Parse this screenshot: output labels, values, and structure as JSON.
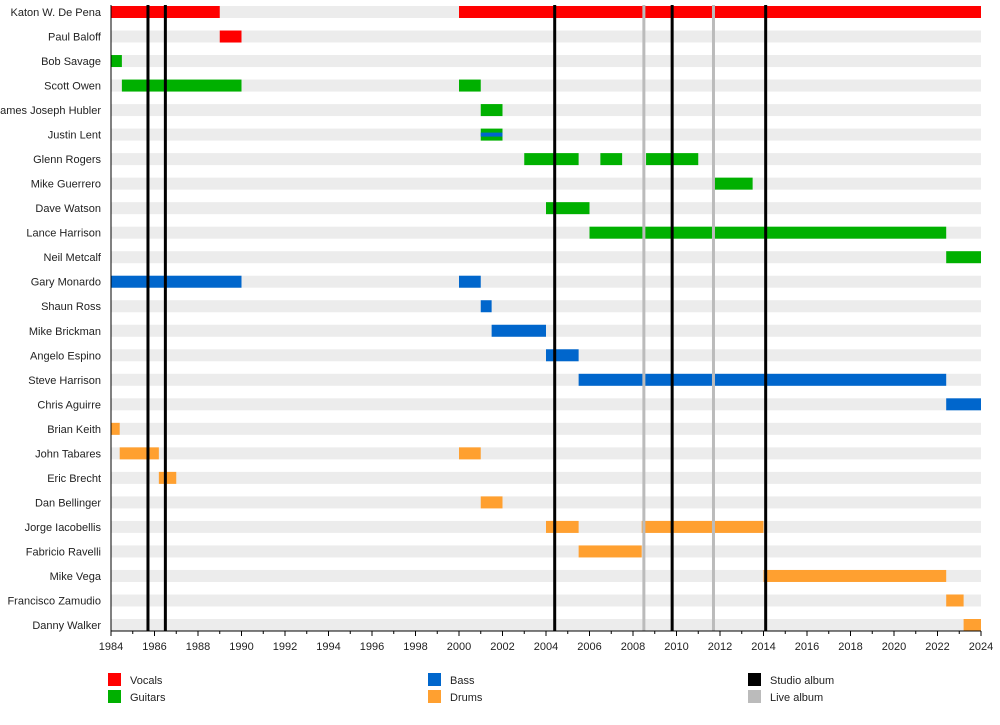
{
  "chart_data": {
    "type": "timeline",
    "xlim": [
      1984,
      2024
    ],
    "x_ticks": [
      "1984",
      "1986",
      "1988",
      "1990",
      "1992",
      "1994",
      "1996",
      "1998",
      "2000",
      "2002",
      "2004",
      "2006",
      "2008",
      "2010",
      "2012",
      "2014",
      "2016",
      "2018",
      "2020",
      "2022",
      "2024"
    ],
    "role_colors": {
      "Vocals": "#ff0000",
      "Guitars": "#00b000",
      "Bass": "#0066cc",
      "Drums": "#ffa030"
    },
    "members": [
      {
        "name": "Katon W. De Pena",
        "spans": [
          {
            "role": "Vocals",
            "start": 1984,
            "end": 1989
          },
          {
            "role": "Vocals",
            "start": 2000,
            "end": 2024
          }
        ]
      },
      {
        "name": "Paul Baloff",
        "spans": [
          {
            "role": "Vocals",
            "start": 1989,
            "end": 1990
          }
        ]
      },
      {
        "name": "Bob Savage",
        "spans": [
          {
            "role": "Guitars",
            "start": 1984,
            "end": 1984.5
          }
        ]
      },
      {
        "name": "Scott Owen",
        "spans": [
          {
            "role": "Guitars",
            "start": 1984.5,
            "end": 1990
          },
          {
            "role": "Guitars",
            "start": 2000,
            "end": 2001
          }
        ]
      },
      {
        "name": "James Joseph Hubler",
        "spans": [
          {
            "role": "Guitars",
            "start": 2001,
            "end": 2002
          }
        ]
      },
      {
        "name": "Justin Lent",
        "spans": [
          {
            "role": "Guitars",
            "start": 2001,
            "end": 2002
          },
          {
            "role": "Bass",
            "start": 2001,
            "end": 2002,
            "stripe": true
          }
        ]
      },
      {
        "name": "Glenn Rogers",
        "spans": [
          {
            "role": "Guitars",
            "start": 2003,
            "end": 2005.5
          },
          {
            "role": "Guitars",
            "start": 2006.5,
            "end": 2007.5
          },
          {
            "role": "Guitars",
            "start": 2008.6,
            "end": 2011
          }
        ]
      },
      {
        "name": "Mike Guerrero",
        "spans": [
          {
            "role": "Guitars",
            "start": 2011.7,
            "end": 2013.5
          }
        ]
      },
      {
        "name": "Dave Watson",
        "spans": [
          {
            "role": "Guitars",
            "start": 2004,
            "end": 2006
          }
        ]
      },
      {
        "name": "Lance Harrison",
        "spans": [
          {
            "role": "Guitars",
            "start": 2006,
            "end": 2022.4
          }
        ]
      },
      {
        "name": "Neil Metcalf",
        "spans": [
          {
            "role": "Guitars",
            "start": 2022.4,
            "end": 2024
          }
        ]
      },
      {
        "name": "Gary Monardo",
        "spans": [
          {
            "role": "Bass",
            "start": 1984,
            "end": 1990
          },
          {
            "role": "Bass",
            "start": 2000,
            "end": 2001
          }
        ]
      },
      {
        "name": "Shaun Ross",
        "spans": [
          {
            "role": "Bass",
            "start": 2001,
            "end": 2001.5
          }
        ]
      },
      {
        "name": "Mike Brickman",
        "spans": [
          {
            "role": "Bass",
            "start": 2001.5,
            "end": 2004
          }
        ]
      },
      {
        "name": "Angelo Espino",
        "spans": [
          {
            "role": "Bass",
            "start": 2004,
            "end": 2005.5
          }
        ]
      },
      {
        "name": "Steve Harrison",
        "spans": [
          {
            "role": "Bass",
            "start": 2005.5,
            "end": 2022.4
          }
        ]
      },
      {
        "name": "Chris Aguirre",
        "spans": [
          {
            "role": "Bass",
            "start": 2022.4,
            "end": 2024
          }
        ]
      },
      {
        "name": "Brian Keith",
        "spans": [
          {
            "role": "Drums",
            "start": 1984,
            "end": 1984.4
          }
        ]
      },
      {
        "name": "John Tabares",
        "spans": [
          {
            "role": "Drums",
            "start": 1984.4,
            "end": 1986.2
          },
          {
            "role": "Drums",
            "start": 2000,
            "end": 2001
          }
        ]
      },
      {
        "name": "Eric Brecht",
        "spans": [
          {
            "role": "Drums",
            "start": 1986.2,
            "end": 1987
          }
        ]
      },
      {
        "name": "Dan Bellinger",
        "spans": [
          {
            "role": "Drums",
            "start": 2001,
            "end": 2002
          }
        ]
      },
      {
        "name": "Jorge Iacobellis",
        "spans": [
          {
            "role": "Drums",
            "start": 2004,
            "end": 2005.5
          },
          {
            "role": "Drums",
            "start": 2008.4,
            "end": 2014
          }
        ]
      },
      {
        "name": "Fabricio Ravelli",
        "spans": [
          {
            "role": "Drums",
            "start": 2005.5,
            "end": 2008.4
          }
        ]
      },
      {
        "name": "Mike Vega",
        "spans": [
          {
            "role": "Drums",
            "start": 2014,
            "end": 2022.4
          }
        ]
      },
      {
        "name": "Francisco Zamudio",
        "spans": [
          {
            "role": "Drums",
            "start": 2022.4,
            "end": 2023.2
          }
        ]
      },
      {
        "name": "Danny Walker",
        "spans": [
          {
            "role": "Drums",
            "start": 2023.2,
            "end": 2024
          }
        ]
      }
    ],
    "events": [
      {
        "type": "Studio album",
        "year": 1985.7
      },
      {
        "type": "Studio album",
        "year": 1986.5
      },
      {
        "type": "Studio album",
        "year": 2004.4
      },
      {
        "type": "Live album",
        "year": 2008.5
      },
      {
        "type": "Studio album",
        "year": 2009.8
      },
      {
        "type": "Live album",
        "year": 2011.7
      },
      {
        "type": "Studio album",
        "year": 2014.1
      }
    ],
    "event_colors": {
      "Studio album": "#000000",
      "Live album": "#bbbbbb"
    },
    "legend": [
      {
        "label": "Vocals",
        "color": "#ff0000"
      },
      {
        "label": "Guitars",
        "color": "#00b000"
      },
      {
        "label": "Bass",
        "color": "#0066cc"
      },
      {
        "label": "Drums",
        "color": "#ffa030"
      },
      {
        "label": "Studio album",
        "color": "#000000"
      },
      {
        "label": "Live album",
        "color": "#bbbbbb"
      }
    ],
    "legend_placement": "bottom"
  }
}
